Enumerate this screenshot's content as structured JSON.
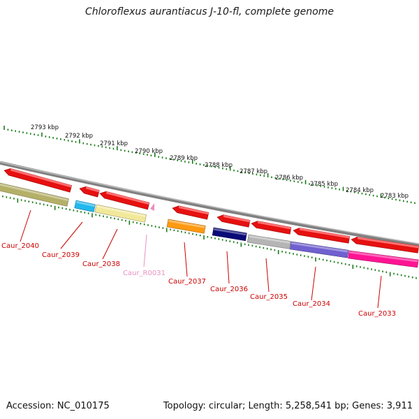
{
  "title": "Chloroflexus aurantiacus J-10-fl, complete genome",
  "footer": {
    "accession": "Accession: NC_010175",
    "summary": "Topology: circular; Length: 5,258,541 bp; Genes: 3,911"
  },
  "colors": {
    "backbone": "#808080",
    "ticks": "#1a7a1a",
    "gene_label": "#cc0000",
    "rna_label": "#e890c0"
  },
  "scale": {
    "unit": "kbp",
    "labels": [
      "2793 kbp",
      "2792 kbp",
      "2791 kbp",
      "2790 kbp",
      "2789 kbp",
      "2788 kbp",
      "2787 kbp",
      "2786 kbp",
      "2785 kbp",
      "2784 kbp",
      "2783 kbp"
    ]
  },
  "genes": [
    {
      "name": "Caur_2040",
      "color": "#b5b068"
    },
    {
      "name": "Caur_2039",
      "color": "#22b8ee"
    },
    {
      "name": "Caur_2038",
      "color": "#f2e89a"
    },
    {
      "name": "Caur_R0031",
      "color": "#e890c0"
    },
    {
      "name": "Caur_2037",
      "color": "#ff9910"
    },
    {
      "name": "Caur_2036",
      "color": "#0a0a78"
    },
    {
      "name": "Caur_2035",
      "color": "#b5b5b5"
    },
    {
      "name": "Caur_2034",
      "color": "#7060d0"
    },
    {
      "name": "Caur_2033",
      "color": "#ff1493"
    }
  ]
}
